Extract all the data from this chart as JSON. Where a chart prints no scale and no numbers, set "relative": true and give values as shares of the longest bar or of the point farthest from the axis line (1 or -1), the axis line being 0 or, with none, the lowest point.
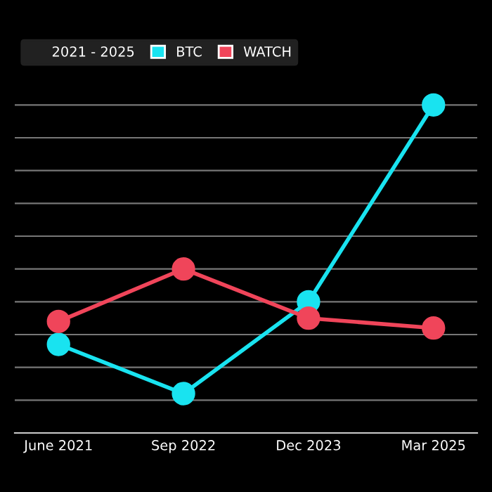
{
  "chart_data": {
    "type": "line",
    "relative": true,
    "legend_title": "2021 - 2025",
    "categories": [
      "June 2021",
      "Sep 2022",
      "Dec 2023",
      "Mar 2025"
    ],
    "series": [
      {
        "name": "BTC",
        "color": "#19e3f0",
        "values": [
          0.27,
          0.12,
          0.4,
          1.0
        ]
      },
      {
        "name": "WATCH",
        "color": "#f0455a",
        "values": [
          0.34,
          0.5,
          0.35,
          0.32
        ]
      }
    ],
    "marker": "circle",
    "line_style": "solid",
    "grid": "y",
    "legend": "top left"
  }
}
